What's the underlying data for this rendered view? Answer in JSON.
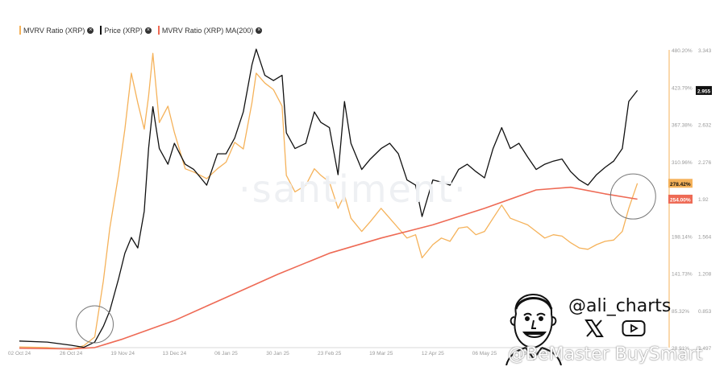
{
  "legend": {
    "items": [
      {
        "label": "MVRV Ratio (XRP)",
        "color": "#f5b25a"
      },
      {
        "label": "Price (XRP)",
        "color": "#111111"
      },
      {
        "label": "MVRV Ratio (XRP) MA(200)",
        "color": "#ee6a55"
      }
    ],
    "close_glyph": "×"
  },
  "watermark": "·santiment·",
  "handle": "@ali_charts",
  "footer_watermark": "@BeMaster BuySmart",
  "social_icons": [
    "x-logo-icon",
    "youtube-icon"
  ],
  "chart_data": {
    "type": "line",
    "x_ticks": [
      "02 Oct 24",
      "26 Oct 24",
      "19 Nov 24",
      "13 Dec 24",
      "06 Jan 25",
      "30 Jan 25",
      "23 Feb 25",
      "19 Mar 25",
      "12 Apr 25",
      "06 May 25",
      "30 May 25"
    ],
    "left_axis_ticks": [
      "480.20%",
      "423.79%",
      "367.38%",
      "310.96%",
      "254.55%",
      "198.14%",
      "141.73%",
      "85.32%",
      "28.91%"
    ],
    "right_axis_ticks": [
      "3.343",
      "2.955",
      "2.632",
      "2.276",
      "1.92",
      "1.564",
      "1.208",
      "0.853",
      "0.497"
    ],
    "highlights": {
      "price_label": "2.955",
      "mvrv_label": "278.42%",
      "ma_label": "254.00%"
    },
    "series": [
      {
        "name": "MVRV Ratio (XRP)",
        "color": "#f5b25a",
        "axis": "left",
        "points": [
          [
            "02 Oct 24",
            30
          ],
          [
            "15 Oct 24",
            29
          ],
          [
            "26 Oct 24",
            26
          ],
          [
            "01 Nov 24",
            32
          ],
          [
            "06 Nov 24",
            45
          ],
          [
            "10 Nov 24",
            130
          ],
          [
            "13 Nov 24",
            210
          ],
          [
            "17 Nov 24",
            290
          ],
          [
            "20 Nov 24",
            360
          ],
          [
            "23 Nov 24",
            445
          ],
          [
            "26 Nov 24",
            400
          ],
          [
            "29 Nov 24",
            360
          ],
          [
            "01 Dec 24",
            410
          ],
          [
            "03 Dec 24",
            475
          ],
          [
            "06 Dec 24",
            370
          ],
          [
            "10 Dec 24",
            395
          ],
          [
            "13 Dec 24",
            355
          ],
          [
            "18 Dec 24",
            300
          ],
          [
            "22 Dec 24",
            295
          ],
          [
            "28 Dec 24",
            285
          ],
          [
            "02 Jan 25",
            300
          ],
          [
            "06 Jan 25",
            310
          ],
          [
            "10 Jan 25",
            340
          ],
          [
            "14 Jan 25",
            330
          ],
          [
            "18 Jan 25",
            400
          ],
          [
            "20 Jan 25",
            445
          ],
          [
            "24 Jan 25",
            430
          ],
          [
            "28 Jan 25",
            420
          ],
          [
            "01 Feb 25",
            395
          ],
          [
            "03 Feb 25",
            290
          ],
          [
            "07 Feb 25",
            265
          ],
          [
            "12 Feb 25",
            275
          ],
          [
            "16 Feb 25",
            300
          ],
          [
            "19 Feb 25",
            290
          ],
          [
            "23 Feb 25",
            280
          ],
          [
            "27 Feb 25",
            240
          ],
          [
            "02 Mar 25",
            260
          ],
          [
            "05 Mar 25",
            225
          ],
          [
            "10 Mar 25",
            205
          ],
          [
            "14 Mar 25",
            220
          ],
          [
            "19 Mar 25",
            240
          ],
          [
            "23 Mar 25",
            225
          ],
          [
            "27 Mar 25",
            210
          ],
          [
            "31 Mar 25",
            195
          ],
          [
            "04 Apr 25",
            200
          ],
          [
            "07 Apr 25",
            165
          ],
          [
            "12 Apr 25",
            185
          ],
          [
            "16 Apr 25",
            195
          ],
          [
            "20 Apr 25",
            190
          ],
          [
            "24 Apr 25",
            210
          ],
          [
            "28 Apr 25",
            212
          ],
          [
            "02 May 25",
            200
          ],
          [
            "06 May 25",
            205
          ],
          [
            "10 May 25",
            225
          ],
          [
            "14 May 25",
            245
          ],
          [
            "18 May 25",
            225
          ],
          [
            "22 May 25",
            220
          ],
          [
            "26 May 25",
            215
          ],
          [
            "30 May 25",
            205
          ],
          [
            "03 Jun 25",
            195
          ],
          [
            "07 Jun 25",
            200
          ],
          [
            "11 Jun 25",
            198
          ],
          [
            "15 Jun 25",
            188
          ],
          [
            "19 Jun 25",
            180
          ],
          [
            "23 Jun 25",
            178
          ],
          [
            "27 Jun 25",
            185
          ],
          [
            "01 Jul 25",
            190
          ],
          [
            "05 Jul 25",
            192
          ],
          [
            "09 Jul 25",
            205
          ],
          [
            "12 Jul 25",
            240
          ],
          [
            "16 Jul 25",
            278
          ]
        ]
      },
      {
        "name": "Price (XRP)",
        "color": "#111111",
        "axis": "right",
        "points": [
          [
            "02 Oct 24",
            0.56
          ],
          [
            "15 Oct 24",
            0.55
          ],
          [
            "26 Oct 24",
            0.52
          ],
          [
            "01 Nov 24",
            0.5
          ],
          [
            "06 Nov 24",
            0.55
          ],
          [
            "10 Nov 24",
            0.7
          ],
          [
            "13 Nov 24",
            0.85
          ],
          [
            "17 Nov 24",
            1.15
          ],
          [
            "20 Nov 24",
            1.4
          ],
          [
            "23 Nov 24",
            1.55
          ],
          [
            "26 Nov 24",
            1.45
          ],
          [
            "29 Nov 24",
            1.8
          ],
          [
            "01 Dec 24",
            2.4
          ],
          [
            "03 Dec 24",
            2.8
          ],
          [
            "06 Dec 24",
            2.4
          ],
          [
            "10 Dec 24",
            2.25
          ],
          [
            "13 Dec 24",
            2.45
          ],
          [
            "18 Dec 24",
            2.25
          ],
          [
            "22 Dec 24",
            2.2
          ],
          [
            "28 Dec 24",
            2.05
          ],
          [
            "02 Jan 25",
            2.35
          ],
          [
            "06 Jan 25",
            2.35
          ],
          [
            "10 Jan 25",
            2.5
          ],
          [
            "14 Jan 25",
            2.75
          ],
          [
            "18 Jan 25",
            3.2
          ],
          [
            "20 Jan 25",
            3.35
          ],
          [
            "24 Jan 25",
            3.1
          ],
          [
            "28 Jan 25",
            3.05
          ],
          [
            "01 Feb 25",
            3.1
          ],
          [
            "03 Feb 25",
            2.55
          ],
          [
            "07 Feb 25",
            2.4
          ],
          [
            "12 Feb 25",
            2.45
          ],
          [
            "16 Feb 25",
            2.75
          ],
          [
            "19 Feb 25",
            2.65
          ],
          [
            "23 Feb 25",
            2.6
          ],
          [
            "27 Feb 25",
            2.15
          ],
          [
            "02 Mar 25",
            2.85
          ],
          [
            "05 Mar 25",
            2.45
          ],
          [
            "10 Mar 25",
            2.2
          ],
          [
            "14 Mar 25",
            2.3
          ],
          [
            "19 Mar 25",
            2.4
          ],
          [
            "23 Mar 25",
            2.45
          ],
          [
            "27 Mar 25",
            2.35
          ],
          [
            "31 Mar 25",
            2.1
          ],
          [
            "04 Apr 25",
            2.05
          ],
          [
            "07 Apr 25",
            1.75
          ],
          [
            "12 Apr 25",
            2.1
          ],
          [
            "16 Apr 25",
            2.08
          ],
          [
            "20 Apr 25",
            2.05
          ],
          [
            "24 Apr 25",
            2.2
          ],
          [
            "28 Apr 25",
            2.25
          ],
          [
            "02 May 25",
            2.18
          ],
          [
            "06 May 25",
            2.12
          ],
          [
            "10 May 25",
            2.4
          ],
          [
            "14 May 25",
            2.6
          ],
          [
            "18 May 25",
            2.4
          ],
          [
            "22 May 25",
            2.45
          ],
          [
            "26 May 25",
            2.32
          ],
          [
            "30 May 25",
            2.2
          ],
          [
            "03 Jun 25",
            2.25
          ],
          [
            "07 Jun 25",
            2.28
          ],
          [
            "11 Jun 25",
            2.3
          ],
          [
            "15 Jun 25",
            2.18
          ],
          [
            "19 Jun 25",
            2.1
          ],
          [
            "23 Jun 25",
            2.05
          ],
          [
            "27 Jun 25",
            2.15
          ],
          [
            "01 Jul 25",
            2.22
          ],
          [
            "05 Jul 25",
            2.28
          ],
          [
            "09 Jul 25",
            2.4
          ],
          [
            "12 Jul 25",
            2.85
          ],
          [
            "16 Jul 25",
            2.955
          ]
        ]
      },
      {
        "name": "MVRV Ratio (XRP) MA(200)",
        "color": "#ee6a55",
        "axis": "left",
        "points": [
          [
            "02 Oct 24",
            28
          ],
          [
            "26 Oct 24",
            27
          ],
          [
            "06 Nov 24",
            29
          ],
          [
            "19 Nov 24",
            42
          ],
          [
            "13 Dec 24",
            70
          ],
          [
            "06 Jan 25",
            105
          ],
          [
            "30 Jan 25",
            140
          ],
          [
            "23 Feb 25",
            172
          ],
          [
            "19 Mar 25",
            195
          ],
          [
            "12 Apr 25",
            215
          ],
          [
            "06 May 25",
            240
          ],
          [
            "30 May 25",
            268
          ],
          [
            "15 Jun 25",
            272
          ],
          [
            "01 Jul 25",
            262
          ],
          [
            "16 Jul 25",
            254
          ]
        ]
      }
    ],
    "x_range": [
      "02 Oct 24",
      "30 Jul 25"
    ],
    "left_ylim": [
      28.91,
      480.2
    ],
    "right_ylim": [
      0.497,
      3.343
    ],
    "grid": false,
    "legend_position": "top-left"
  }
}
